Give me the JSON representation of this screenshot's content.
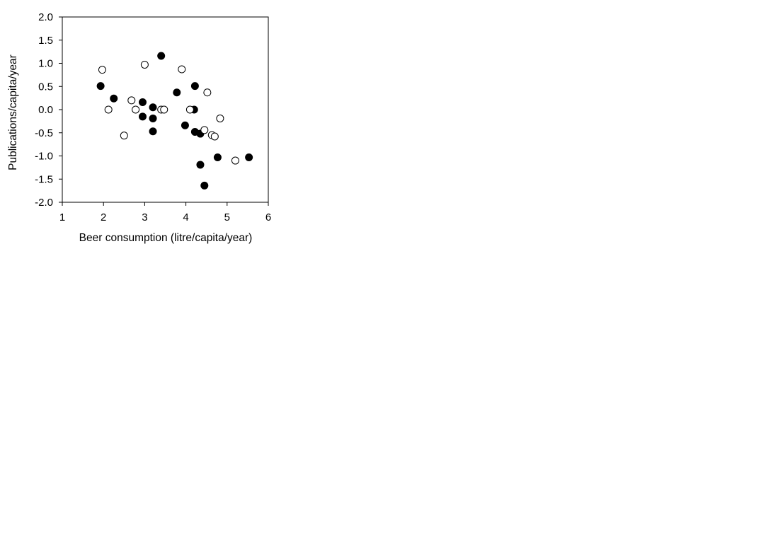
{
  "chart_data": {
    "type": "scatter",
    "xlabel": "Beer consumption (litre/capita/year)",
    "ylabel": "Publications/capita/year",
    "xlim": [
      1,
      6
    ],
    "ylim": [
      -2.0,
      2.0
    ],
    "xticks": [
      "1",
      "2",
      "3",
      "4",
      "5",
      "6"
    ],
    "yticks": [
      "2.0",
      "1.5",
      "1.0",
      "0.5",
      "0.0",
      "-0.5",
      "-1.0",
      "-1.5",
      "-2.0"
    ],
    "grid": false,
    "legend": "none",
    "series": [
      {
        "marker": "filled-circle",
        "color": "#000000",
        "points": [
          [
            1.93,
            0.51
          ],
          [
            2.25,
            0.24
          ],
          [
            2.95,
            0.16
          ],
          [
            2.95,
            -0.15
          ],
          [
            3.2,
            0.05
          ],
          [
            3.2,
            -0.19
          ],
          [
            3.2,
            -0.47
          ],
          [
            3.4,
            1.16
          ],
          [
            3.78,
            0.37
          ],
          [
            3.98,
            -0.34
          ],
          [
            4.2,
            0.0
          ],
          [
            4.22,
            0.51
          ],
          [
            4.22,
            -0.48
          ],
          [
            4.35,
            -0.52
          ],
          [
            4.35,
            -1.19
          ],
          [
            4.45,
            -1.64
          ],
          [
            4.77,
            -1.03
          ],
          [
            5.53,
            -1.03
          ]
        ]
      },
      {
        "marker": "open-circle",
        "color": "#000000",
        "points": [
          [
            1.97,
            0.86
          ],
          [
            2.12,
            0.0
          ],
          [
            2.5,
            -0.56
          ],
          [
            2.68,
            0.2
          ],
          [
            2.78,
            0.0
          ],
          [
            3.0,
            0.97
          ],
          [
            3.4,
            0.0
          ],
          [
            3.47,
            0.0
          ],
          [
            3.9,
            0.87
          ],
          [
            4.1,
            0.0
          ],
          [
            4.45,
            -0.44
          ],
          [
            4.52,
            0.37
          ],
          [
            4.63,
            -0.55
          ],
          [
            4.7,
            -0.58
          ],
          [
            4.83,
            -0.19
          ],
          [
            5.2,
            -1.1
          ]
        ]
      }
    ]
  }
}
